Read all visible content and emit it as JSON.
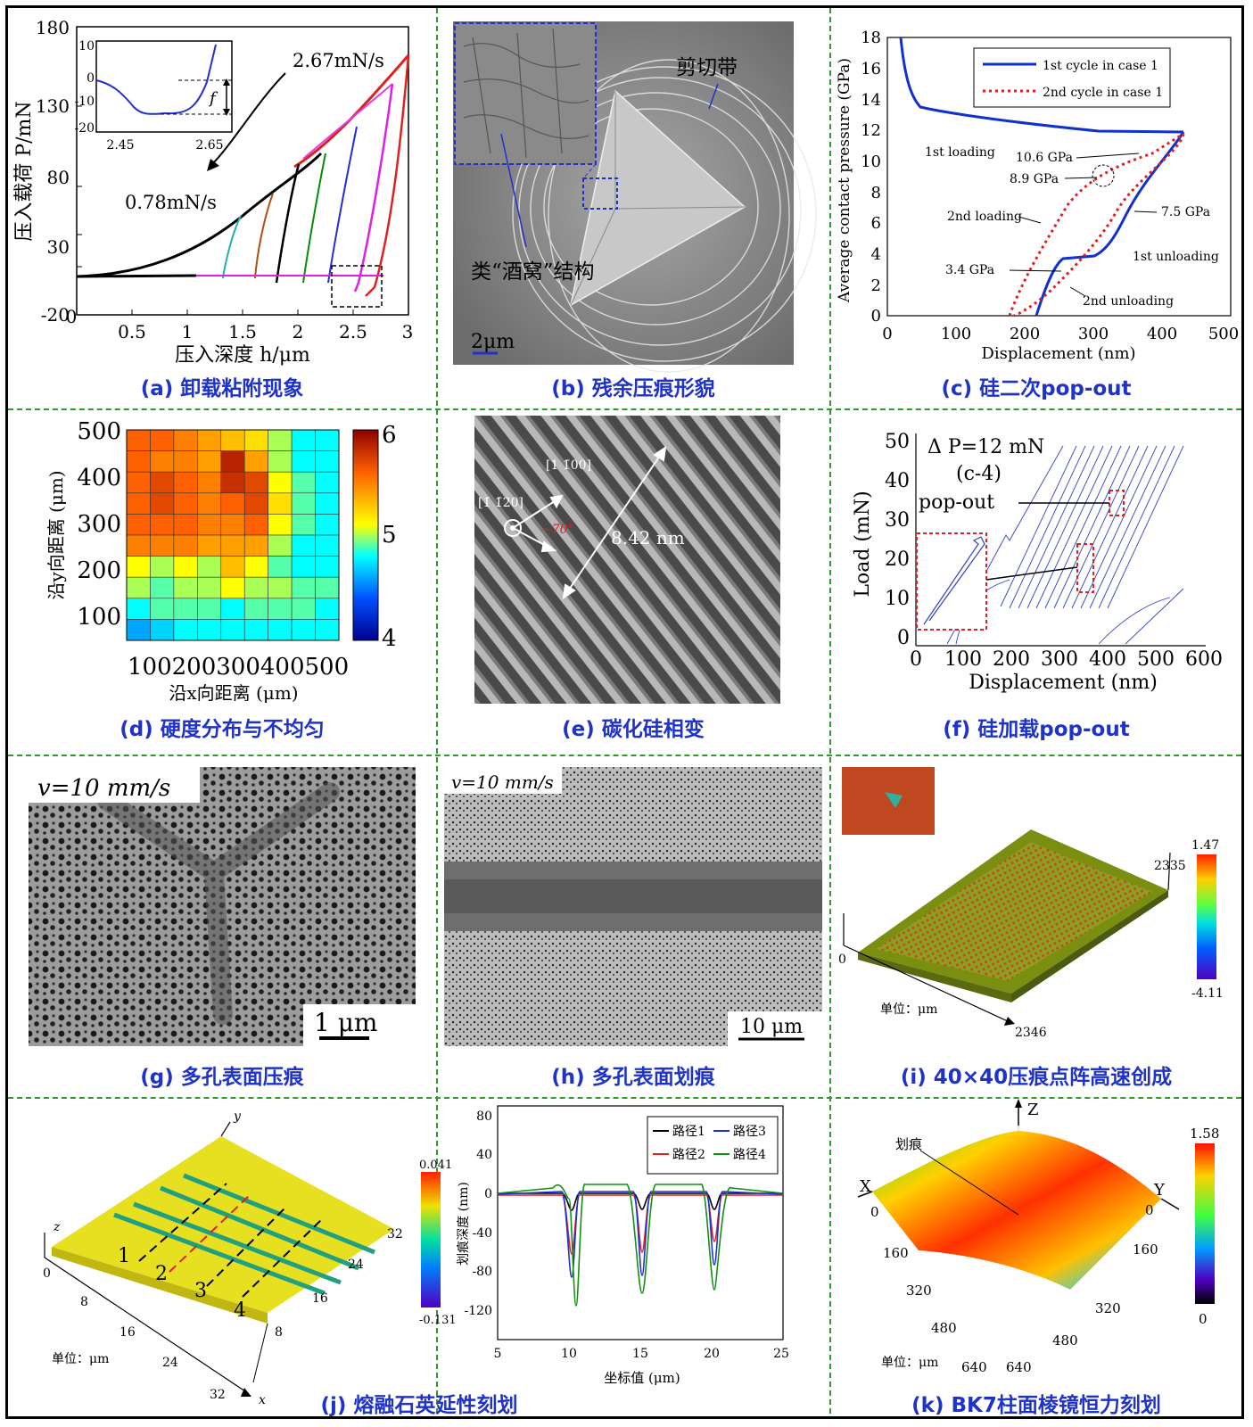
{
  "captions": {
    "a": "(a) 卸载粘附现象",
    "b": "(b) 残余压痕形貌",
    "c": "(c) 硅二次pop-out",
    "d": "(d) 硬度分布与不均匀",
    "e": "(e) 碳化硅相变",
    "f": "(f) 硅加载pop-out",
    "g": "(g) 多孔表面压痕",
    "h": "(h) 多孔表面划痕",
    "i": "(i) 40×40压痕点阵高速创成",
    "j": "(j) 熔融石英延性刻划",
    "k": "(k) BK7柱面棱镜恒力刻划"
  },
  "panel_a": {
    "ylabel": "压入载荷 P/mN",
    "xlabel": "压入深度 h/μm",
    "ann_high": "2.67mN/s",
    "ann_low": "0.78mN/s",
    "inset_f": "f",
    "xticks": [
      "0",
      "0.5",
      "1",
      "1.5",
      "2",
      "2.5",
      "3"
    ],
    "yticks": [
      "180",
      "130",
      "80",
      "30",
      "-20"
    ],
    "inset_xticks": [
      "2.45",
      "2.65"
    ],
    "inset_yticks": [
      "10",
      "0",
      "-10",
      "-20"
    ]
  },
  "panel_b": {
    "label_shear": "剪切带",
    "label_dimple": "类“酒窝”结构",
    "scale": "2μm"
  },
  "panel_c": {
    "ylabel": "Average contact pressure (GPa)",
    "xlabel": "Displacement (nm)",
    "legend": [
      "1st cycle in case 1",
      "2nd cycle in case 1"
    ],
    "ann": [
      "1st loading",
      "10.6 GPa",
      "8.9 GPa",
      "2nd loading",
      "7.5 GPa",
      "1st unloading",
      "3.4 GPa",
      "2nd unloading"
    ],
    "xticks": [
      "0",
      "100",
      "200",
      "300",
      "400",
      "500"
    ],
    "yticks": [
      "18",
      "16",
      "14",
      "12",
      "10",
      "8",
      "6",
      "4",
      "2",
      "0"
    ]
  },
  "panel_d": {
    "ylabel": "沿y向距离 (μm)",
    "xlabel": "沿x向距离 (μm)",
    "xticks_text": "100200300400500",
    "yticks": [
      "500",
      "400",
      "300",
      "200",
      "100"
    ],
    "cbar": [
      "6",
      "5",
      "4"
    ],
    "grid": [
      [
        5.6,
        5.6,
        5.5,
        5.4,
        5.3,
        5.2,
        5.0,
        4.8,
        4.8
      ],
      [
        5.6,
        5.5,
        5.5,
        5.4,
        5.85,
        5.4,
        5.0,
        4.8,
        4.8
      ],
      [
        5.6,
        5.7,
        5.6,
        5.5,
        5.8,
        5.7,
        5.1,
        4.9,
        4.8
      ],
      [
        5.6,
        5.7,
        5.6,
        5.5,
        5.6,
        5.7,
        5.2,
        4.9,
        4.8
      ],
      [
        5.6,
        5.6,
        5.6,
        5.5,
        5.5,
        5.6,
        5.1,
        4.9,
        4.8
      ],
      [
        5.5,
        5.5,
        5.5,
        5.4,
        5.4,
        5.4,
        5.0,
        4.8,
        4.8
      ],
      [
        5.1,
        5.0,
        5.1,
        5.0,
        5.3,
        5.1,
        4.9,
        4.8,
        4.8
      ],
      [
        5.0,
        4.9,
        5.0,
        5.0,
        5.1,
        5.0,
        5.0,
        4.9,
        4.9
      ],
      [
        4.8,
        4.9,
        4.9,
        4.9,
        4.8,
        4.9,
        4.9,
        4.9,
        4.8
      ],
      [
        4.6,
        4.7,
        4.8,
        4.8,
        4.8,
        4.8,
        4.8,
        4.8,
        4.8
      ]
    ]
  },
  "panel_e": {
    "dir1": "[1 1̄00]",
    "dir2": "[1̄ 1̄20]",
    "angle": "~70°",
    "dist": "8.42 nm"
  },
  "panel_f": {
    "annot_dp": "Δ P=12 mN",
    "annot_c": "(c-4)",
    "annot_pop": "pop-out",
    "ylabel": "Load (mN)",
    "xlabel": "Displacement (nm)",
    "xticks": [
      "0",
      "100",
      "200",
      "300",
      "400",
      "500",
      "600"
    ],
    "yticks": [
      "50",
      "40",
      "30",
      "20",
      "10",
      "0"
    ]
  },
  "panel_g": {
    "speed": "v=10 mm/s",
    "scale": "1 μm"
  },
  "panel_h": {
    "speed": "v=10 mm/s",
    "scale": "10 μm"
  },
  "panel_i": {
    "unit": "单位：μm",
    "n2335": "2335",
    "n2346": "2346",
    "n0": "0",
    "cbar_max": "1.47",
    "cbar_min": "-4.11"
  },
  "panel_j": {
    "unit": "单位：μm",
    "track_labels": [
      "1",
      "2",
      "3",
      "4"
    ],
    "x_ticks": [
      "8",
      "16",
      "24",
      "32"
    ],
    "y_ticks": [
      "32",
      "24",
      "16",
      "8"
    ],
    "zero": "0",
    "axis_x": "x",
    "axis_y": "y",
    "axis_z": "z",
    "cbar_max": "0.041",
    "cbar_min": "-0.131",
    "profile_ylabel": "划痕深度 (nm)",
    "profile_xlabel": "坐标值 (μm)",
    "profile_xticks": [
      "5",
      "10",
      "15",
      "20",
      "25"
    ],
    "profile_yticks": [
      "80",
      "40",
      "0",
      "-40",
      "-80",
      "-120"
    ],
    "legend": [
      "路径1",
      "路径2",
      "路径3",
      "路径4"
    ]
  },
  "panel_k": {
    "unit": "单位：μm",
    "scratch": "划痕",
    "axis_x": "X",
    "axis_y": "Y",
    "axis_z": "Z",
    "left_ticks": [
      "0",
      "160",
      "320",
      "480",
      "640"
    ],
    "right_ticks": [
      "0",
      "160",
      "320",
      "480",
      "640"
    ],
    "cbar_max": "1.58",
    "cbar_min": "0"
  },
  "colors": {
    "caption": "#1f33c9",
    "divider": "#2e9a2e"
  }
}
